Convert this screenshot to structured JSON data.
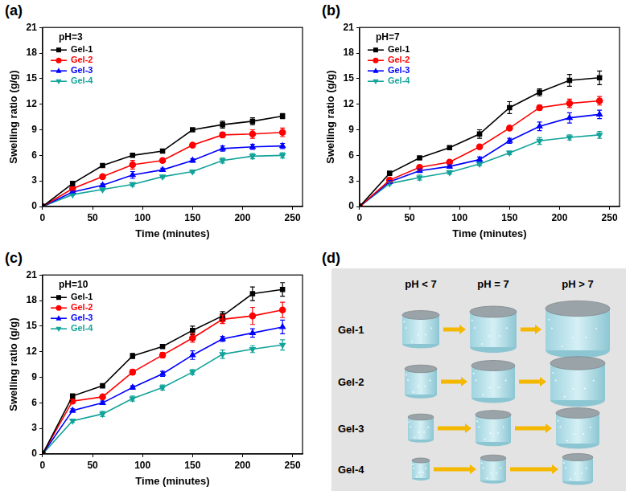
{
  "chart_data": [
    {
      "type": "line",
      "panel_label": "(a)",
      "annotation": "pH=3",
      "x_label": "Time (minutes)",
      "y_label": "Swelling ratio (g/g)",
      "x": [
        0,
        30,
        60,
        90,
        120,
        150,
        180,
        210,
        240
      ],
      "xlim": [
        0,
        260
      ],
      "xticks": [
        0,
        50,
        100,
        150,
        200,
        250
      ],
      "ylim": [
        0,
        21
      ],
      "yticks": [
        0,
        3,
        6,
        9,
        12,
        15,
        18,
        21
      ],
      "grid": false,
      "legend": "upper left",
      "series": [
        {
          "name": "Gel-1",
          "color": "#000000",
          "marker": "square",
          "values": [
            0,
            2.7,
            4.8,
            6.0,
            6.5,
            9.0,
            9.6,
            10.0,
            10.6
          ],
          "errors": [
            0,
            0.2,
            0.15,
            0.15,
            0.15,
            0.1,
            0.4,
            0.4,
            0.3
          ]
        },
        {
          "name": "Gel-2",
          "color": "#ff0000",
          "marker": "circle",
          "values": [
            0,
            2.1,
            3.5,
            4.9,
            5.4,
            7.2,
            8.4,
            8.5,
            8.7
          ],
          "errors": [
            0,
            0.1,
            0.15,
            0.5,
            0.15,
            0.2,
            0.3,
            0.5,
            0.5
          ]
        },
        {
          "name": "Gel-3",
          "color": "#0000ff",
          "marker": "triangle-up",
          "values": [
            0,
            1.7,
            2.5,
            3.7,
            4.3,
            5.4,
            6.8,
            7.0,
            7.1
          ],
          "errors": [
            0,
            0.1,
            0.15,
            0.4,
            0.2,
            0.2,
            0.3,
            0.3,
            0.3
          ]
        },
        {
          "name": "Gel-4",
          "color": "#12a39a",
          "marker": "triangle-down",
          "values": [
            0,
            1.4,
            2.0,
            2.6,
            3.5,
            4.1,
            5.4,
            5.9,
            6.0
          ],
          "errors": [
            0,
            0.1,
            0.15,
            0.2,
            0.15,
            0.15,
            0.3,
            0.3,
            0.3
          ]
        }
      ]
    },
    {
      "type": "line",
      "panel_label": "(b)",
      "annotation": "pH=7",
      "x_label": "Time (minutes)",
      "y_label": "Swelling ratio (g/g)",
      "x": [
        0,
        30,
        60,
        90,
        120,
        150,
        180,
        210,
        240
      ],
      "xlim": [
        0,
        260
      ],
      "xticks": [
        0,
        50,
        100,
        150,
        200,
        250
      ],
      "ylim": [
        0,
        21
      ],
      "yticks": [
        0,
        3,
        6,
        9,
        12,
        15,
        18,
        21
      ],
      "grid": false,
      "legend": "upper left",
      "series": [
        {
          "name": "Gel-1",
          "color": "#000000",
          "marker": "square",
          "values": [
            0,
            3.9,
            5.7,
            6.9,
            8.5,
            11.6,
            13.4,
            14.8,
            15.1
          ],
          "errors": [
            0,
            0.1,
            0.15,
            0.2,
            0.5,
            0.7,
            0.4,
            0.7,
            0.8
          ]
        },
        {
          "name": "Gel-2",
          "color": "#ff0000",
          "marker": "circle",
          "values": [
            0,
            3.1,
            4.6,
            5.2,
            7.0,
            9.2,
            11.6,
            12.1,
            12.4
          ],
          "errors": [
            0,
            0.15,
            0.2,
            0.2,
            0.2,
            0.2,
            0.3,
            0.5,
            0.5
          ]
        },
        {
          "name": "Gel-3",
          "color": "#0000ff",
          "marker": "triangle-up",
          "values": [
            0,
            2.9,
            4.2,
            4.7,
            5.5,
            7.7,
            9.4,
            10.4,
            10.8
          ],
          "errors": [
            0,
            0.15,
            0.2,
            0.2,
            0.3,
            0.3,
            0.5,
            0.6,
            0.5
          ]
        },
        {
          "name": "Gel-4",
          "color": "#12a39a",
          "marker": "triangle-down",
          "values": [
            0,
            2.7,
            3.4,
            4.0,
            5.0,
            6.3,
            7.7,
            8.1,
            8.4
          ],
          "errors": [
            0,
            0.15,
            0.3,
            0.2,
            0.2,
            0.2,
            0.4,
            0.3,
            0.4
          ]
        }
      ]
    },
    {
      "type": "line",
      "panel_label": "(c)",
      "annotation": "pH=10",
      "x_label": "Time (minutes)",
      "y_label": "Swelling ratio (g/g)",
      "x": [
        0,
        30,
        60,
        90,
        120,
        150,
        180,
        210,
        240
      ],
      "xlim": [
        0,
        260
      ],
      "xticks": [
        0,
        50,
        100,
        150,
        200,
        250
      ],
      "ylim": [
        0,
        21
      ],
      "yticks": [
        0,
        3,
        6,
        9,
        12,
        15,
        18,
        21
      ],
      "grid": false,
      "legend": "upper left",
      "series": [
        {
          "name": "Gel-1",
          "color": "#000000",
          "marker": "square",
          "values": [
            0,
            6.8,
            8.0,
            11.5,
            12.6,
            14.5,
            16.2,
            18.8,
            19.3
          ],
          "errors": [
            0,
            0.2,
            0.1,
            0.3,
            0.2,
            0.5,
            0.5,
            0.8,
            0.8
          ]
        },
        {
          "name": "Gel-2",
          "color": "#ff0000",
          "marker": "circle",
          "values": [
            0,
            6.2,
            6.7,
            9.6,
            11.6,
            13.6,
            15.8,
            16.2,
            16.9
          ],
          "errors": [
            0,
            0.2,
            0.2,
            0.3,
            0.3,
            0.5,
            0.5,
            1.0,
            0.9
          ]
        },
        {
          "name": "Gel-3",
          "color": "#0000ff",
          "marker": "triangle-up",
          "values": [
            0,
            5.1,
            6.0,
            7.8,
            9.4,
            11.6,
            13.5,
            14.2,
            14.9
          ],
          "errors": [
            0,
            0.2,
            0.2,
            0.2,
            0.3,
            0.5,
            0.3,
            0.5,
            0.8
          ]
        },
        {
          "name": "Gel-4",
          "color": "#12a39a",
          "marker": "triangle-down",
          "values": [
            0,
            3.9,
            4.7,
            6.5,
            7.8,
            9.6,
            11.7,
            12.3,
            12.8
          ],
          "errors": [
            0,
            0.2,
            0.3,
            0.3,
            0.3,
            0.3,
            0.5,
            0.4,
            0.6
          ]
        }
      ]
    }
  ],
  "diagram": {
    "panel_label": "(d)",
    "columns": [
      "pH < 7",
      "pH = 7",
      "pH > 7"
    ],
    "rows": [
      "Gel-1",
      "Gel-2",
      "Gel-3",
      "Gel-4"
    ]
  }
}
